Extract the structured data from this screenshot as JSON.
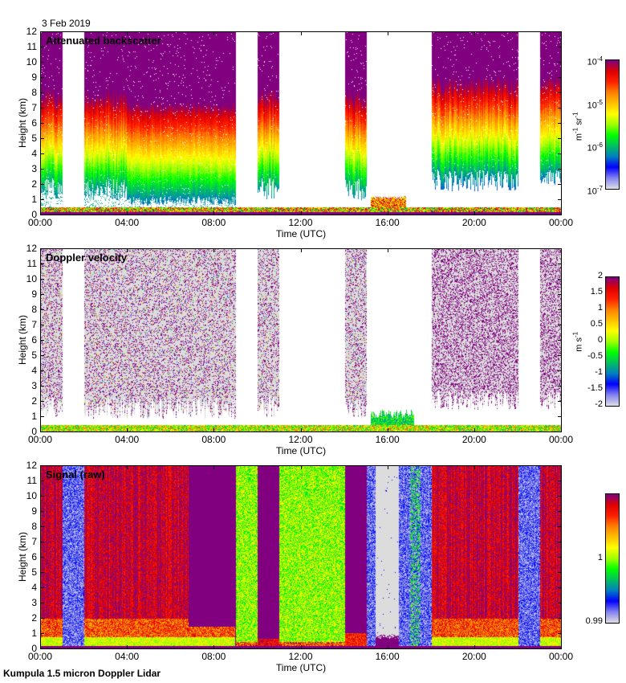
{
  "date": "3 Feb 2019",
  "footer": "Kumpula 1.5 micron Doppler Lidar",
  "chart_data": [
    {
      "type": "heatmap",
      "title": "Attenuated backscatter",
      "xlabel": "Time (UTC)",
      "ylabel": "Height (km)",
      "xlim_hours": [
        0,
        24
      ],
      "ylim": [
        0,
        12
      ],
      "x_ticks": [
        "00:00",
        "04:00",
        "08:00",
        "12:00",
        "16:00",
        "20:00",
        "00:00"
      ],
      "y_ticks": [
        "0",
        "1",
        "2",
        "3",
        "4",
        "5",
        "6",
        "7",
        "8",
        "9",
        "10",
        "11",
        "12"
      ],
      "colorbar": {
        "scale": "log",
        "range": [
          1e-07,
          0.0001
        ],
        "ticks": [
          {
            "base": "10",
            "exp": "-4"
          },
          {
            "base": "10",
            "exp": "-5"
          },
          {
            "base": "10",
            "exp": "-6"
          },
          {
            "base": "10",
            "exp": "-7"
          }
        ],
        "unit_parts": [
          "m",
          "-1",
          " sr",
          "-1"
        ]
      },
      "data_gaps_hours": [
        [
          1.0,
          2.0
        ],
        [
          9.0,
          10.0
        ],
        [
          11.0,
          14.0
        ],
        [
          15.0,
          18.0
        ],
        [
          22.0,
          23.0
        ]
      ]
    },
    {
      "type": "heatmap",
      "title": "Doppler velocity",
      "xlabel": "Time (UTC)",
      "ylabel": "Height (km)",
      "xlim_hours": [
        0,
        24
      ],
      "ylim": [
        0,
        12
      ],
      "x_ticks": [
        "00:00",
        "04:00",
        "08:00",
        "12:00",
        "16:00",
        "20:00",
        "00:00"
      ],
      "y_ticks": [
        "0",
        "1",
        "2",
        "3",
        "4",
        "5",
        "6",
        "7",
        "8",
        "9",
        "10",
        "11",
        "12"
      ],
      "colorbar": {
        "scale": "linear",
        "range": [
          -2,
          2
        ],
        "ticks": [
          "2",
          "1.5",
          "1",
          "0.5",
          "0",
          "-0.5",
          "-1",
          "-1.5",
          "-2"
        ],
        "unit_parts": [
          "m s",
          "-1"
        ]
      },
      "data_gaps_hours": [
        [
          1.0,
          2.0
        ],
        [
          9.0,
          10.0
        ],
        [
          11.0,
          14.0
        ],
        [
          15.0,
          18.0
        ],
        [
          22.0,
          23.0
        ]
      ]
    },
    {
      "type": "heatmap",
      "title": "Signal (raw)",
      "xlabel": "Time (UTC)",
      "ylabel": "Height (km)",
      "xlim_hours": [
        0,
        24
      ],
      "ylim": [
        0,
        12
      ],
      "x_ticks": [
        "00:00",
        "04:00",
        "08:00",
        "12:00",
        "16:00",
        "20:00",
        "00:00"
      ],
      "y_ticks": [
        "0",
        "1",
        "2",
        "3",
        "4",
        "5",
        "6",
        "7",
        "8",
        "9",
        "10",
        "11",
        "12"
      ],
      "colorbar": {
        "scale": "linear",
        "range": [
          0.99,
          1.01
        ],
        "ticks": [
          "1",
          "0.99"
        ]
      }
    }
  ],
  "colors": {
    "missing": "#ffffff",
    "noise_grey": "#dcdcdc",
    "palette": [
      "#dcdce6",
      "#8080f0",
      "#0000ff",
      "#0080c0",
      "#00c060",
      "#00ff00",
      "#a0ff00",
      "#ffff00",
      "#ffc000",
      "#ff8000",
      "#ff2000",
      "#e00000",
      "#800080"
    ]
  }
}
